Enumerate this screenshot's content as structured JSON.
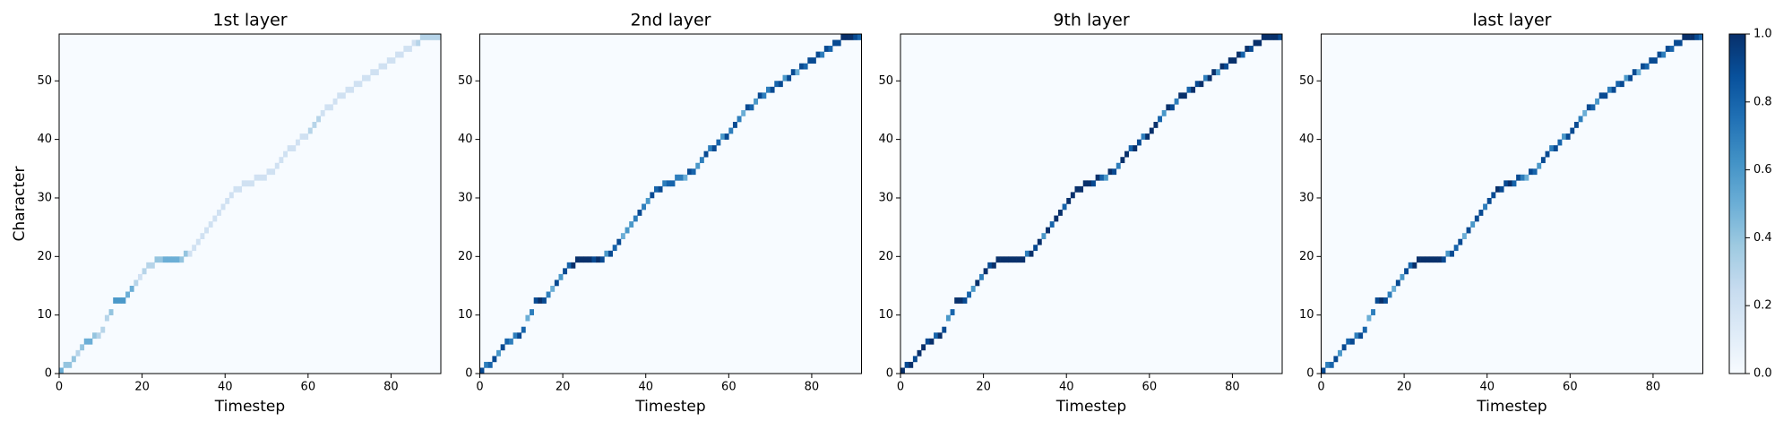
{
  "chart_data": [
    {
      "type": "heatmap",
      "title": "1st layer",
      "xlabel": "Timestep",
      "ylabel": "Character",
      "xlim": [
        0,
        92
      ],
      "ylim": [
        0,
        58
      ],
      "xticks": [
        0,
        20,
        40,
        60,
        80
      ],
      "yticks": [
        0,
        10,
        20,
        30,
        40,
        50
      ],
      "x": [
        0,
        1,
        2,
        3,
        4,
        5,
        6,
        7,
        8,
        9,
        10,
        11,
        12,
        13,
        14,
        15,
        16,
        17,
        18,
        19,
        20,
        21,
        22,
        23,
        24,
        25,
        26,
        27,
        28,
        29,
        30,
        31,
        32,
        33,
        34,
        35,
        36,
        37,
        38,
        39,
        40,
        41,
        42,
        43,
        44,
        45,
        46,
        47,
        48,
        49,
        50,
        51,
        52,
        53,
        54,
        55,
        56,
        57,
        58,
        59,
        60,
        61,
        62,
        63,
        64,
        65,
        66,
        67,
        68,
        69,
        70,
        71,
        72,
        73,
        74,
        75,
        76,
        77,
        78,
        79,
        80,
        81,
        82,
        83,
        84,
        85,
        86,
        87,
        88,
        89,
        90,
        91
      ],
      "values": [
        0,
        1,
        1,
        2,
        3,
        4,
        5,
        5,
        6,
        6,
        7,
        9,
        10,
        12,
        12,
        12,
        13,
        14,
        15,
        16,
        17,
        18,
        18,
        19,
        19,
        19,
        19,
        19,
        19,
        19,
        20,
        20,
        21,
        22,
        23,
        24,
        25,
        26,
        27,
        28,
        29,
        30,
        31,
        31,
        32,
        32,
        32,
        33,
        33,
        33,
        34,
        34,
        35,
        36,
        37,
        38,
        38,
        39,
        40,
        40,
        41,
        42,
        43,
        44,
        45,
        45,
        46,
        47,
        47,
        48,
        48,
        49,
        49,
        50,
        50,
        51,
        51,
        52,
        52,
        53,
        53,
        54,
        54,
        55,
        55,
        56,
        56,
        57,
        57,
        57,
        57,
        57
      ],
      "weights": [
        0.5,
        0.4,
        0.4,
        0.4,
        0.3,
        0.4,
        0.5,
        0.5,
        0.4,
        0.3,
        0.3,
        0.3,
        0.4,
        0.6,
        0.6,
        0.6,
        0.5,
        0.5,
        0.3,
        0.2,
        0.3,
        0.3,
        0.3,
        0.4,
        0.4,
        0.5,
        0.5,
        0.5,
        0.5,
        0.4,
        0.4,
        0.2,
        0.2,
        0.2,
        0.2,
        0.2,
        0.2,
        0.2,
        0.2,
        0.2,
        0.2,
        0.2,
        0.2,
        0.2,
        0.2,
        0.2,
        0.2,
        0.2,
        0.2,
        0.2,
        0.2,
        0.2,
        0.2,
        0.2,
        0.2,
        0.2,
        0.2,
        0.2,
        0.2,
        0.2,
        0.3,
        0.3,
        0.3,
        0.2,
        0.2,
        0.2,
        0.2,
        0.2,
        0.2,
        0.2,
        0.2,
        0.2,
        0.2,
        0.2,
        0.2,
        0.2,
        0.2,
        0.2,
        0.2,
        0.2,
        0.2,
        0.2,
        0.2,
        0.2,
        0.2,
        0.2,
        0.3,
        0.3,
        0.3,
        0.3,
        0.3,
        0.3
      ]
    },
    {
      "type": "heatmap",
      "title": "2nd layer",
      "xlabel": "Timestep",
      "xlim": [
        0,
        92
      ],
      "ylim": [
        0,
        58
      ],
      "xticks": [
        0,
        20,
        40,
        60,
        80
      ],
      "yticks": [
        0,
        10,
        20,
        30,
        40,
        50
      ],
      "x": [
        0,
        1,
        2,
        3,
        4,
        5,
        6,
        7,
        8,
        9,
        10,
        11,
        12,
        13,
        14,
        15,
        16,
        17,
        18,
        19,
        20,
        21,
        22,
        23,
        24,
        25,
        26,
        27,
        28,
        29,
        30,
        31,
        32,
        33,
        34,
        35,
        36,
        37,
        38,
        39,
        40,
        41,
        42,
        43,
        44,
        45,
        46,
        47,
        48,
        49,
        50,
        51,
        52,
        53,
        54,
        55,
        56,
        57,
        58,
        59,
        60,
        61,
        62,
        63,
        64,
        65,
        66,
        67,
        68,
        69,
        70,
        71,
        72,
        73,
        74,
        75,
        76,
        77,
        78,
        79,
        80,
        81,
        82,
        83,
        84,
        85,
        86,
        87,
        88,
        89,
        90,
        91
      ],
      "values": [
        0,
        1,
        1,
        2,
        3,
        4,
        5,
        5,
        6,
        6,
        7,
        9,
        10,
        12,
        12,
        12,
        13,
        14,
        15,
        16,
        17,
        18,
        18,
        19,
        19,
        19,
        19,
        19,
        19,
        19,
        20,
        20,
        21,
        22,
        23,
        24,
        25,
        26,
        27,
        28,
        29,
        30,
        31,
        31,
        32,
        32,
        32,
        33,
        33,
        33,
        34,
        34,
        35,
        36,
        37,
        38,
        38,
        39,
        40,
        40,
        41,
        42,
        43,
        44,
        45,
        45,
        46,
        47,
        47,
        48,
        48,
        49,
        49,
        50,
        50,
        51,
        51,
        52,
        52,
        53,
        53,
        54,
        54,
        55,
        55,
        56,
        56,
        57,
        57,
        57,
        57,
        57
      ],
      "weights": [
        0.9,
        0.7,
        0.8,
        0.9,
        0.6,
        0.9,
        0.8,
        0.7,
        0.7,
        0.9,
        0.8,
        0.5,
        0.7,
        0.9,
        1,
        0.9,
        0.7,
        0.5,
        0.9,
        0.6,
        0.9,
        0.8,
        1,
        1,
        1,
        1,
        1,
        0.9,
        1,
        0.9,
        0.6,
        0.9,
        0.8,
        0.9,
        0.5,
        0.6,
        0.6,
        0.7,
        0.9,
        0.7,
        0.6,
        0.9,
        0.8,
        0.9,
        0.7,
        0.8,
        0.8,
        0.7,
        0.7,
        0.5,
        0.9,
        0.8,
        0.6,
        0.7,
        0.9,
        0.7,
        0.9,
        0.8,
        0.6,
        0.9,
        0.7,
        0.9,
        0.7,
        0.5,
        0.9,
        0.8,
        0.6,
        0.9,
        0.7,
        0.7,
        0.9,
        0.8,
        0.9,
        0.6,
        0.9,
        0.9,
        0.5,
        0.9,
        0.8,
        0.9,
        0.9,
        0.9,
        0.7,
        0.9,
        0.8,
        0.9,
        0.9,
        1,
        1,
        1,
        0.9,
        0.8
      ]
    },
    {
      "type": "heatmap",
      "title": "9th layer",
      "xlabel": "Timestep",
      "xlim": [
        0,
        92
      ],
      "ylim": [
        0,
        58
      ],
      "xticks": [
        0,
        20,
        40,
        60,
        80
      ],
      "yticks": [
        0,
        10,
        20,
        30,
        40,
        50
      ],
      "x": [
        0,
        1,
        2,
        3,
        4,
        5,
        6,
        7,
        8,
        9,
        10,
        11,
        12,
        13,
        14,
        15,
        16,
        17,
        18,
        19,
        20,
        21,
        22,
        23,
        24,
        25,
        26,
        27,
        28,
        29,
        30,
        31,
        32,
        33,
        34,
        35,
        36,
        37,
        38,
        39,
        40,
        41,
        42,
        43,
        44,
        45,
        46,
        47,
        48,
        49,
        50,
        51,
        52,
        53,
        54,
        55,
        56,
        57,
        58,
        59,
        60,
        61,
        62,
        63,
        64,
        65,
        66,
        67,
        68,
        69,
        70,
        71,
        72,
        73,
        74,
        75,
        76,
        77,
        78,
        79,
        80,
        81,
        82,
        83,
        84,
        85,
        86,
        87,
        88,
        89,
        90,
        91
      ],
      "values": [
        0,
        1,
        1,
        2,
        3,
        4,
        5,
        5,
        6,
        6,
        7,
        9,
        10,
        12,
        12,
        12,
        13,
        14,
        15,
        16,
        17,
        18,
        18,
        19,
        19,
        19,
        19,
        19,
        19,
        19,
        20,
        20,
        21,
        22,
        23,
        24,
        25,
        26,
        27,
        28,
        29,
        30,
        31,
        31,
        32,
        32,
        32,
        33,
        33,
        33,
        34,
        34,
        35,
        36,
        37,
        38,
        38,
        39,
        40,
        40,
        41,
        42,
        43,
        44,
        45,
        45,
        46,
        47,
        47,
        48,
        48,
        49,
        49,
        50,
        50,
        51,
        51,
        52,
        52,
        53,
        53,
        54,
        54,
        55,
        55,
        56,
        56,
        57,
        57,
        57,
        57,
        57
      ],
      "weights": [
        1,
        0.9,
        1,
        0.9,
        1,
        1,
        0.9,
        1,
        0.8,
        1,
        0.9,
        0.6,
        0.8,
        1,
        1,
        0.9,
        0.8,
        0.6,
        1,
        0.7,
        1,
        0.9,
        1,
        1,
        1,
        1,
        1,
        1,
        1,
        1,
        0.7,
        1,
        0.9,
        1,
        0.6,
        1,
        0.8,
        1,
        1,
        0.8,
        1,
        1,
        1,
        1,
        1,
        1,
        0.9,
        1,
        0.8,
        0.6,
        1,
        0.9,
        0.7,
        1,
        1,
        0.8,
        1,
        0.9,
        0.7,
        1,
        1,
        1,
        0.8,
        0.6,
        1,
        0.9,
        0.7,
        1,
        1,
        0.8,
        1,
        0.9,
        1,
        0.7,
        1,
        1,
        0.6,
        1,
        0.9,
        1,
        1,
        1,
        0.8,
        1,
        0.9,
        1,
        1,
        1,
        1,
        1,
        1,
        0.9
      ]
    },
    {
      "type": "heatmap",
      "title": "last layer",
      "xlabel": "Timestep",
      "xlim": [
        0,
        92
      ],
      "ylim": [
        0,
        58
      ],
      "xticks": [
        0,
        20,
        40,
        60,
        80
      ],
      "yticks": [
        0,
        10,
        20,
        30,
        40,
        50
      ],
      "x": [
        0,
        1,
        2,
        3,
        4,
        5,
        6,
        7,
        8,
        9,
        10,
        11,
        12,
        13,
        14,
        15,
        16,
        17,
        18,
        19,
        20,
        21,
        22,
        23,
        24,
        25,
        26,
        27,
        28,
        29,
        30,
        31,
        32,
        33,
        34,
        35,
        36,
        37,
        38,
        39,
        40,
        41,
        42,
        43,
        44,
        45,
        46,
        47,
        48,
        49,
        50,
        51,
        52,
        53,
        54,
        55,
        56,
        57,
        58,
        59,
        60,
        61,
        62,
        63,
        64,
        65,
        66,
        67,
        68,
        69,
        70,
        71,
        72,
        73,
        74,
        75,
        76,
        77,
        78,
        79,
        80,
        81,
        82,
        83,
        84,
        85,
        86,
        87,
        88,
        89,
        90,
        91
      ],
      "values": [
        0,
        1,
        1,
        2,
        3,
        4,
        5,
        5,
        6,
        6,
        7,
        9,
        10,
        12,
        12,
        12,
        13,
        14,
        15,
        16,
        17,
        18,
        18,
        19,
        19,
        19,
        19,
        19,
        19,
        19,
        20,
        20,
        21,
        22,
        23,
        24,
        25,
        26,
        27,
        28,
        29,
        30,
        31,
        31,
        32,
        32,
        32,
        33,
        33,
        33,
        34,
        34,
        35,
        36,
        37,
        38,
        38,
        39,
        40,
        40,
        41,
        42,
        43,
        44,
        45,
        45,
        46,
        47,
        47,
        48,
        48,
        49,
        49,
        50,
        50,
        51,
        51,
        52,
        52,
        53,
        53,
        54,
        54,
        55,
        55,
        56,
        56,
        57,
        57,
        57,
        57,
        57
      ],
      "weights": [
        0.9,
        0.7,
        0.8,
        0.9,
        0.6,
        0.9,
        0.8,
        0.9,
        0.7,
        0.9,
        0.8,
        0.5,
        0.7,
        0.9,
        1,
        0.9,
        0.7,
        0.5,
        0.9,
        0.6,
        0.9,
        0.8,
        1,
        1,
        1,
        1,
        1,
        1,
        1,
        0.9,
        0.6,
        0.9,
        0.8,
        0.9,
        0.5,
        0.9,
        0.6,
        0.9,
        0.9,
        0.7,
        0.9,
        0.9,
        1,
        0.9,
        0.9,
        1,
        0.8,
        0.9,
        0.7,
        0.5,
        0.9,
        0.8,
        0.6,
        0.9,
        0.9,
        0.7,
        0.9,
        0.8,
        0.6,
        0.9,
        0.9,
        0.9,
        0.7,
        0.5,
        0.9,
        0.8,
        0.6,
        0.9,
        0.9,
        0.7,
        0.9,
        0.8,
        0.9,
        0.6,
        0.9,
        0.9,
        0.5,
        0.9,
        0.8,
        0.9,
        0.9,
        0.9,
        0.7,
        0.9,
        0.8,
        0.9,
        0.9,
        1,
        1,
        1,
        0.9,
        0.8
      ]
    }
  ],
  "colorbar": {
    "colormap": "Blues",
    "lim": [
      0,
      1
    ],
    "ticks": [
      {
        "value": 0,
        "label": "0.0"
      },
      {
        "value": 0.2,
        "label": "0.2"
      },
      {
        "value": 0.4,
        "label": "0.4"
      },
      {
        "value": 0.6,
        "label": "0.6"
      },
      {
        "value": 0.8,
        "label": "0.8"
      },
      {
        "value": 1,
        "label": "1.0"
      }
    ]
  }
}
